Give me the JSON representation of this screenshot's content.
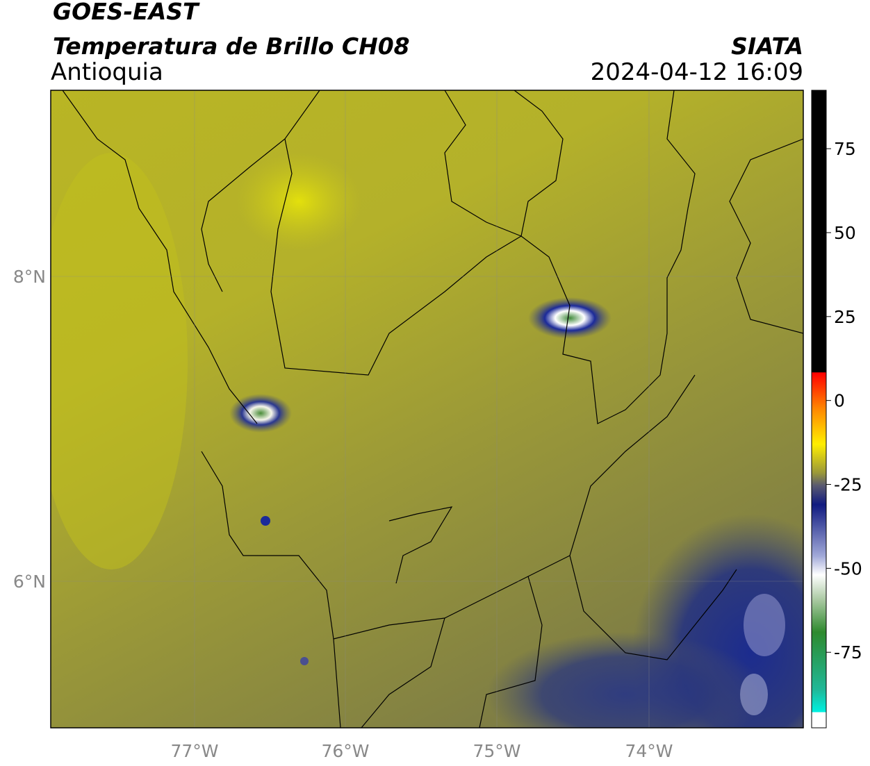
{
  "header": {
    "title": "GOES-EAST",
    "subtitle": "Temperatura de Brillo CH08",
    "region": "Antioquia",
    "source": "SIATA",
    "datetime": "2024-04-12 16:09"
  },
  "map": {
    "lat_labels": [
      "8°N",
      "6°N"
    ],
    "lon_labels": [
      "77°W",
      "76°W",
      "75°W",
      "74°W"
    ]
  },
  "colorbar": {
    "lim": [
      -97.5,
      92.4
    ],
    "ticks": [
      75,
      50,
      25,
      0,
      -25,
      -50,
      -75
    ]
  }
}
